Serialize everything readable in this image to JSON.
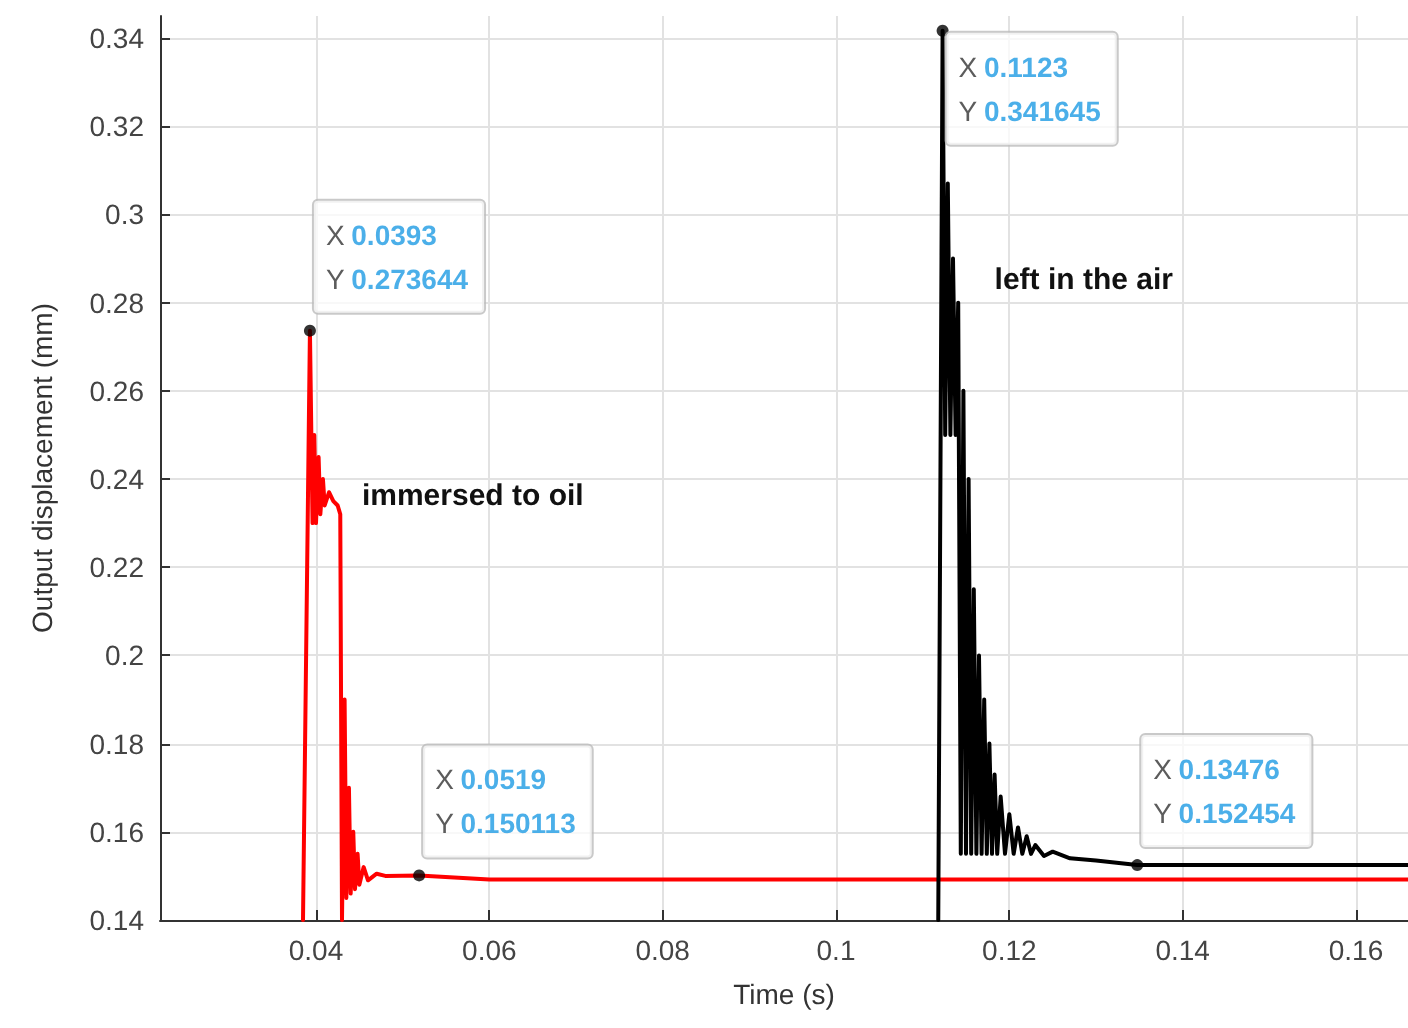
{
  "chart_data": {
    "type": "line",
    "xlabel": "Time (s)",
    "ylabel": "Output displacement (mm)",
    "xlim": [
      0.022,
      0.166
    ],
    "xticks": [
      0.04,
      0.06,
      0.08,
      0.1,
      0.12,
      0.14,
      0.16
    ],
    "ylim": [
      0.14,
      0.345
    ],
    "yticks": [
      0.14,
      0.16,
      0.18,
      0.2,
      0.22,
      0.24,
      0.26,
      0.28,
      0.3,
      0.32,
      0.34
    ],
    "grid": true,
    "marker": "none",
    "line_style": "solid",
    "series": [
      {
        "name": "immersed to oil",
        "color": "#ff0000",
        "x": [
          0.0385,
          0.0393,
          0.0396,
          0.0398,
          0.04,
          0.0403,
          0.0405,
          0.0408,
          0.041,
          0.0415,
          0.042,
          0.0425,
          0.0428,
          0.043,
          0.0433,
          0.0435,
          0.0438,
          0.044,
          0.0443,
          0.0445,
          0.0448,
          0.045,
          0.0455,
          0.046,
          0.047,
          0.048,
          0.0519,
          0.06,
          0.08,
          0.1,
          0.12,
          0.14,
          0.166
        ],
        "values": [
          0.14,
          0.273644,
          0.23,
          0.25,
          0.23,
          0.245,
          0.232,
          0.24,
          0.234,
          0.237,
          0.235,
          0.234,
          0.232,
          0.14,
          0.19,
          0.145,
          0.17,
          0.146,
          0.16,
          0.147,
          0.155,
          0.148,
          0.152,
          0.149,
          0.1505,
          0.15,
          0.150113,
          0.1492,
          0.1492,
          0.1492,
          0.1492,
          0.1492,
          0.1492
        ]
      },
      {
        "name": "left in the air",
        "color": "#000000",
        "x": [
          0.1118,
          0.1123,
          0.1126,
          0.1129,
          0.1132,
          0.1135,
          0.1138,
          0.1141,
          0.1144,
          0.1147,
          0.115,
          0.1153,
          0.1156,
          0.1159,
          0.1162,
          0.1165,
          0.1168,
          0.1171,
          0.1174,
          0.1177,
          0.118,
          0.1183,
          0.1186,
          0.119,
          0.1195,
          0.12,
          0.1205,
          0.121,
          0.1215,
          0.122,
          0.1225,
          0.123,
          0.124,
          0.125,
          0.127,
          0.13,
          0.13476,
          0.15,
          0.166
        ],
        "values": [
          0.14,
          0.341645,
          0.25,
          0.307,
          0.25,
          0.29,
          0.25,
          0.28,
          0.155,
          0.26,
          0.155,
          0.24,
          0.155,
          0.215,
          0.155,
          0.2,
          0.155,
          0.19,
          0.155,
          0.18,
          0.155,
          0.173,
          0.155,
          0.168,
          0.155,
          0.164,
          0.155,
          0.161,
          0.155,
          0.159,
          0.155,
          0.157,
          0.1545,
          0.1555,
          0.154,
          0.1535,
          0.152454,
          0.1525,
          0.1525
        ]
      }
    ],
    "annotations": [
      {
        "text": "X 0.0393\nY 0.273644",
        "x": 0.0393,
        "y": 0.273644
      },
      {
        "text": "X 0.0519\nY 0.150113",
        "x": 0.0519,
        "y": 0.150113
      },
      {
        "text": "X 0.1123\nY 0.341645",
        "x": 0.1123,
        "y": 0.341645
      },
      {
        "text": "X 0.13476\nY 0.152454",
        "x": 0.13476,
        "y": 0.152454
      }
    ]
  }
}
